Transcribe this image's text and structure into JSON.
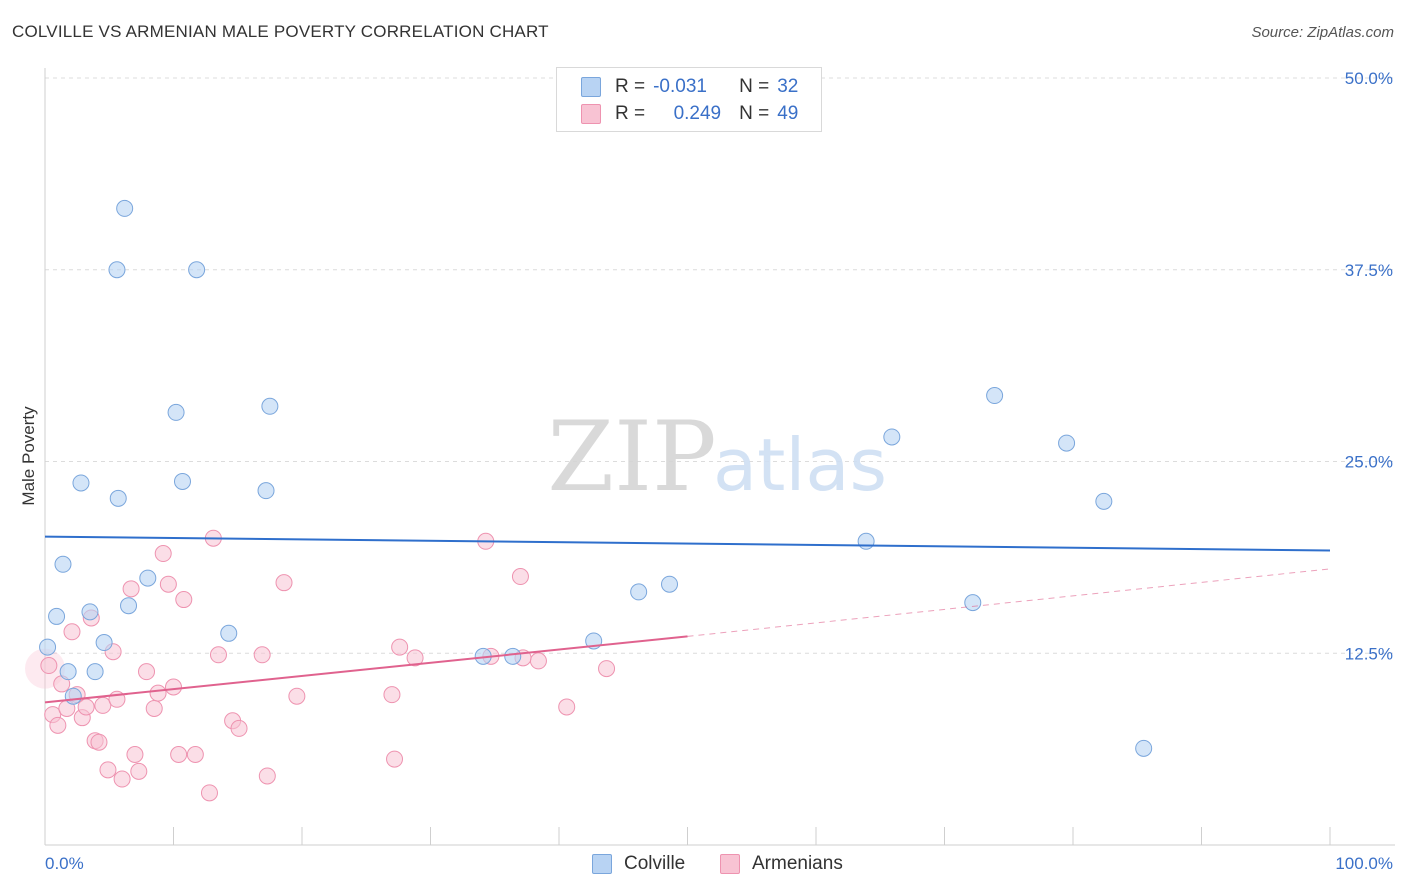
{
  "header": {
    "title": "COLVILLE VS ARMENIAN MALE POVERTY CORRELATION CHART",
    "source": "Source: ZipAtlas.com"
  },
  "legend": {
    "colville": {
      "r_label": "R =",
      "r_value": "-0.031",
      "n_label": "N =",
      "n_value": "32"
    },
    "armenians": {
      "r_label": "R =",
      "r_value": "0.249",
      "n_label": "N =",
      "n_value": "49"
    }
  },
  "bottom_legend": {
    "colville": "Colville",
    "armenians": "Armenians"
  },
  "watermark": {
    "part1": "ZIP",
    "part2": "atlas"
  },
  "colors": {
    "colville_fill": "#b8d3f3",
    "colville_stroke": "#7aa6dc",
    "colville_line": "#2f6fcc",
    "armenians_fill": "#f8c3d3",
    "armenians_stroke": "#ee93b0",
    "armenians_line": "#e0628e",
    "axis_text": "#3a70c8"
  },
  "chart_data": {
    "type": "scatter",
    "title": "COLVILLE VS ARMENIAN MALE POVERTY CORRELATION CHART",
    "xlabel": "",
    "ylabel": "Male Poverty",
    "xlim": [
      0,
      100
    ],
    "ylim": [
      0,
      50
    ],
    "x_tick_labels": [
      "0.0%",
      "100.0%"
    ],
    "y_ticks": [
      12.5,
      25.0,
      37.5,
      50.0
    ],
    "y_tick_labels": [
      "12.5%",
      "25.0%",
      "37.5%",
      "50.0%"
    ],
    "grid": "horizontal dashed",
    "legend_position": "top-center",
    "series": [
      {
        "name": "Colville",
        "r": -0.031,
        "n": 32,
        "trend": {
          "x": [
            0,
            100
          ],
          "y": [
            20.1,
            19.2
          ],
          "style": "solid"
        },
        "points": [
          [
            6.2,
            41.5
          ],
          [
            5.6,
            37.5
          ],
          [
            11.8,
            37.5
          ],
          [
            10.2,
            28.2
          ],
          [
            17.5,
            28.6
          ],
          [
            2.8,
            23.6
          ],
          [
            10.7,
            23.7
          ],
          [
            5.7,
            22.6
          ],
          [
            17.2,
            23.1
          ],
          [
            1.4,
            18.3
          ],
          [
            8.0,
            17.4
          ],
          [
            6.5,
            15.6
          ],
          [
            0.9,
            14.9
          ],
          [
            3.5,
            15.2
          ],
          [
            14.3,
            13.8
          ],
          [
            0.2,
            12.9
          ],
          [
            4.6,
            13.2
          ],
          [
            1.8,
            11.3
          ],
          [
            3.9,
            11.3
          ],
          [
            2.2,
            9.7
          ],
          [
            34.1,
            12.3
          ],
          [
            36.4,
            12.3
          ],
          [
            42.7,
            13.3
          ],
          [
            46.2,
            16.5
          ],
          [
            48.6,
            17.0
          ],
          [
            63.9,
            19.8
          ],
          [
            65.9,
            26.6
          ],
          [
            72.2,
            15.8
          ],
          [
            73.9,
            29.3
          ],
          [
            79.5,
            26.2
          ],
          [
            82.4,
            22.4
          ],
          [
            85.5,
            6.3
          ]
        ]
      },
      {
        "name": "Armenians",
        "r": 0.249,
        "n": 49,
        "trend": {
          "x": [
            0,
            50,
            100
          ],
          "y": [
            9.3,
            13.6,
            18.0
          ],
          "style": "solid to 50, dashed beyond"
        },
        "points": [
          [
            0.3,
            11.7
          ],
          [
            0.6,
            8.5
          ],
          [
            1.0,
            7.8
          ],
          [
            1.3,
            10.5
          ],
          [
            1.7,
            8.9
          ],
          [
            2.1,
            13.9
          ],
          [
            2.5,
            9.8
          ],
          [
            2.9,
            8.3
          ],
          [
            3.2,
            9.0
          ],
          [
            3.6,
            14.8
          ],
          [
            3.9,
            6.8
          ],
          [
            4.2,
            6.7
          ],
          [
            4.5,
            9.1
          ],
          [
            4.9,
            4.9
          ],
          [
            5.3,
            12.6
          ],
          [
            5.6,
            9.5
          ],
          [
            6.0,
            4.3
          ],
          [
            6.7,
            16.7
          ],
          [
            7.3,
            4.8
          ],
          [
            7.0,
            5.9
          ],
          [
            7.9,
            11.3
          ],
          [
            8.5,
            8.9
          ],
          [
            8.8,
            9.9
          ],
          [
            9.2,
            19.0
          ],
          [
            9.6,
            17.0
          ],
          [
            10.0,
            10.3
          ],
          [
            10.4,
            5.9
          ],
          [
            10.8,
            16.0
          ],
          [
            11.7,
            5.9
          ],
          [
            12.8,
            3.4
          ],
          [
            13.1,
            20.0
          ],
          [
            13.5,
            12.4
          ],
          [
            14.6,
            8.1
          ],
          [
            15.1,
            7.6
          ],
          [
            16.9,
            12.4
          ],
          [
            17.3,
            4.5
          ],
          [
            18.6,
            17.1
          ],
          [
            19.6,
            9.7
          ],
          [
            27.0,
            9.8
          ],
          [
            27.2,
            5.6
          ],
          [
            27.6,
            12.9
          ],
          [
            28.8,
            12.2
          ],
          [
            34.3,
            19.8
          ],
          [
            34.7,
            12.3
          ],
          [
            37.0,
            17.5
          ],
          [
            38.4,
            12.0
          ],
          [
            40.6,
            9.0
          ],
          [
            43.7,
            11.5
          ],
          [
            37.2,
            12.2
          ]
        ]
      }
    ]
  }
}
